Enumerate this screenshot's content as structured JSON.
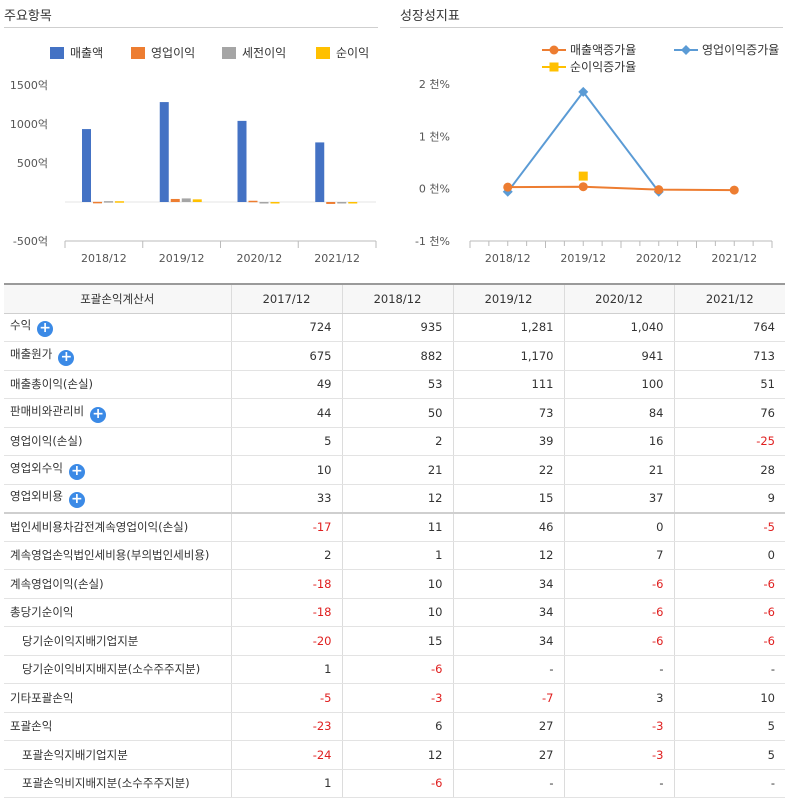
{
  "left_panel": {
    "title": "주요항목"
  },
  "right_panel": {
    "title": "성장성지표"
  },
  "chart_data": [
    {
      "type": "bar",
      "categories": [
        "2018/12",
        "2019/12",
        "2020/12",
        "2021/12"
      ],
      "series": [
        {
          "name": "매출액",
          "color": "#4472c4",
          "values": [
            935,
            1281,
            1040,
            764
          ]
        },
        {
          "name": "영업이익",
          "color": "#ed7d31",
          "values": [
            2,
            39,
            16,
            -25
          ]
        },
        {
          "name": "세전이익",
          "color": "#a5a5a5",
          "values": [
            11,
            46,
            0,
            -5
          ]
        },
        {
          "name": "순이익",
          "color": "#ffc000",
          "values": [
            10,
            34,
            -6,
            -6
          ]
        }
      ],
      "yticks": [
        "1500억",
        "1000억",
        "500억",
        "",
        "-500억"
      ],
      "ylim": [
        -500,
        1500
      ],
      "legend": "top"
    },
    {
      "type": "line",
      "categories": [
        "2018/12",
        "2019/12",
        "2020/12",
        "2021/12"
      ],
      "series": [
        {
          "name": "매출액증가율",
          "color": "#ed7d31",
          "marker": "circle",
          "values": [
            29,
            37,
            -19,
            -27
          ]
        },
        {
          "name": "영업이익증가율",
          "color": "#5b9bd5",
          "marker": "diamond",
          "values": [
            -60,
            1850,
            -59,
            null
          ]
        },
        {
          "name": "순이익증가율",
          "color": "#ffc000",
          "marker": "square",
          "values": [
            null,
            240,
            null,
            null
          ]
        }
      ],
      "yticks": [
        "2 천%",
        "1 천%",
        "0 천%",
        "-1 천%"
      ],
      "ylim": [
        -1000,
        2000
      ],
      "legend": "top"
    }
  ],
  "table": {
    "headers": [
      "포괄손익계산서",
      "2017/12",
      "2018/12",
      "2019/12",
      "2020/12",
      "2021/12"
    ],
    "rows": [
      {
        "label": "수익",
        "expand": true,
        "values": [
          "724",
          "935",
          "1,281",
          "1,040",
          "764"
        ]
      },
      {
        "label": "매출원가",
        "expand": true,
        "values": [
          "675",
          "882",
          "1,170",
          "941",
          "713"
        ]
      },
      {
        "label": "매출총이익(손실)",
        "values": [
          "49",
          "53",
          "111",
          "100",
          "51"
        ]
      },
      {
        "label": "판매비와관리비",
        "expand": true,
        "values": [
          "44",
          "50",
          "73",
          "84",
          "76"
        ]
      },
      {
        "label": "영업이익(손실)",
        "values": [
          "5",
          "2",
          "39",
          "16",
          "-25"
        ]
      },
      {
        "label": "영업외수익",
        "expand": true,
        "values": [
          "10",
          "21",
          "22",
          "21",
          "28"
        ]
      },
      {
        "label": "영업외비용",
        "expand": true,
        "values": [
          "33",
          "12",
          "15",
          "37",
          "9"
        ]
      },
      {
        "label": "법인세비용차감전계속영업이익(손실)",
        "sep": true,
        "values": [
          "-17",
          "11",
          "46",
          "0",
          "-5"
        ]
      },
      {
        "label": "계속영업손익법인세비용(부의법인세비용)",
        "values": [
          "2",
          "1",
          "12",
          "7",
          "0"
        ]
      },
      {
        "label": "계속영업이익(손실)",
        "values": [
          "-18",
          "10",
          "34",
          "-6",
          "-6"
        ]
      },
      {
        "label": "총당기순이익",
        "values": [
          "-18",
          "10",
          "34",
          "-6",
          "-6"
        ]
      },
      {
        "label": "당기순이익지배기업지분",
        "sub": true,
        "values": [
          "-20",
          "15",
          "34",
          "-6",
          "-6"
        ]
      },
      {
        "label": "당기순이익비지배지분(소수주주지분)",
        "sub": true,
        "values": [
          "1",
          "-6",
          "-",
          "-",
          "-"
        ]
      },
      {
        "label": "기타포괄손익",
        "values": [
          "-5",
          "-3",
          "-7",
          "3",
          "10"
        ]
      },
      {
        "label": "포괄손익",
        "values": [
          "-23",
          "6",
          "27",
          "-3",
          "5"
        ]
      },
      {
        "label": "포괄손익지배기업지분",
        "sub": true,
        "values": [
          "-24",
          "12",
          "27",
          "-3",
          "5"
        ]
      },
      {
        "label": "포괄손익비지배지분(소수주주지분)",
        "sub": true,
        "values": [
          "1",
          "-6",
          "-",
          "-",
          "-"
        ]
      }
    ]
  }
}
